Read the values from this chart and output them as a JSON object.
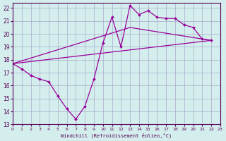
{
  "xlabel": "Windchill (Refroidissement éolien,°C)",
  "background_color": "#d4eeed",
  "grid_color": "#aaaacc",
  "line_color": "#990099",
  "xlim": [
    0,
    23
  ],
  "ylim": [
    13,
    22.4
  ],
  "xticks": [
    0,
    1,
    2,
    3,
    4,
    5,
    6,
    7,
    8,
    9,
    10,
    11,
    12,
    13,
    14,
    15,
    16,
    17,
    18,
    19,
    20,
    21,
    22,
    23
  ],
  "yticks": [
    13,
    14,
    15,
    16,
    17,
    18,
    19,
    20,
    21,
    22
  ],
  "line1_x": [
    0,
    1,
    2,
    3,
    4,
    5,
    6,
    7,
    8,
    9,
    10,
    11,
    12,
    13,
    14,
    15,
    16,
    17,
    18,
    19,
    20,
    21,
    22
  ],
  "line1_y": [
    17.7,
    17.3,
    16.8,
    16.5,
    16.3,
    15.2,
    14.2,
    13.4,
    14.4,
    16.5,
    19.3,
    21.3,
    19.0,
    22.2,
    21.5,
    21.8,
    21.3,
    21.2,
    21.2,
    20.7,
    20.5,
    19.6,
    19.5
  ],
  "line2_x": [
    0,
    22
  ],
  "line2_y": [
    17.7,
    19.5
  ],
  "line3_x": [
    0,
    13,
    22
  ],
  "line3_y": [
    17.7,
    20.5,
    19.5
  ]
}
